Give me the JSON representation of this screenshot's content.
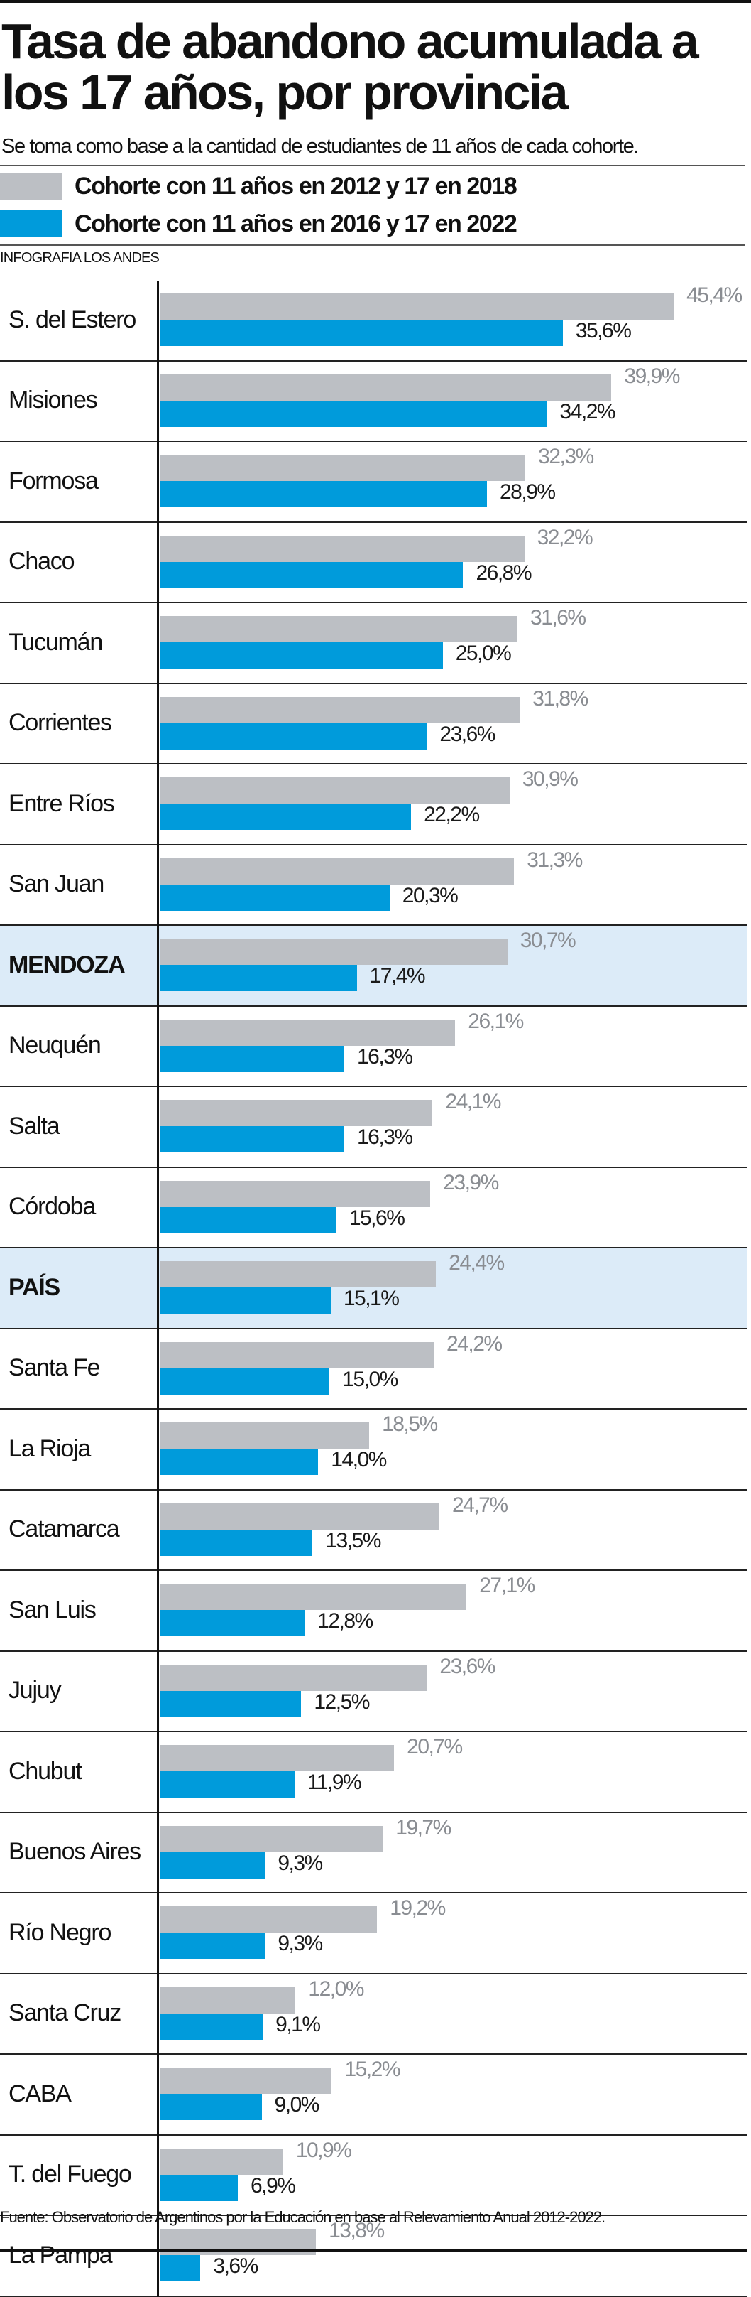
{
  "title": "Tasa de abandono acumulada a los 17 años, por provincia",
  "subtitle": "Se toma como base a la cantidad de estudiantes de 11 años de cada cohorte.",
  "credit": "INFOGRAFIA LOS ANDES",
  "source": "Fuente: Observatorio de Argentinos por la Educación en base al Relevamiento Anual 2012-2022.",
  "colors": {
    "old": "#bcbfc4",
    "new": "#009bdb",
    "highlight": "#dcebf8"
  },
  "chart_data": {
    "type": "bar",
    "orientation": "horizontal",
    "legend_placement": "top",
    "grid": false,
    "xlim": [
      0,
      52
    ],
    "highlighted": [
      "MENDOZA",
      "PAÍS"
    ],
    "categories": [
      "S. del Estero",
      "Misiones",
      "Formosa",
      "Chaco",
      "Tucumán",
      "Corrientes",
      "Entre Ríos",
      "San Juan",
      "MENDOZA",
      "Neuquén",
      "Salta",
      "Córdoba",
      "PAÍS",
      "Santa Fe",
      "La Rioja",
      "Catamarca",
      "San Luis",
      "Jujuy",
      "Chubut",
      "Buenos Aires",
      "Río Negro",
      "Santa Cruz",
      "CABA",
      "T. del Fuego",
      "La Pampa"
    ],
    "series": [
      {
        "name": "Cohorte con 11 años en 2012 y 17 en 2018",
        "values": [
          45.4,
          39.9,
          32.3,
          32.2,
          31.6,
          31.8,
          30.9,
          31.3,
          30.7,
          26.1,
          24.1,
          23.9,
          24.4,
          24.2,
          18.5,
          24.7,
          27.1,
          23.6,
          20.7,
          19.7,
          19.2,
          12.0,
          15.2,
          10.9,
          13.8
        ],
        "labels": [
          "45,4%",
          "39,9%",
          "32,3%",
          "32,2%",
          "31,6%",
          "31,8%",
          "30,9%",
          "31,3%",
          "30,7%",
          "26,1%",
          "24,1%",
          "23,9%",
          "24,4%",
          "24,2%",
          "18,5%",
          "24,7%",
          "27,1%",
          "23,6%",
          "20,7%",
          "19,7%",
          "19,2%",
          "12,0%",
          "15,2%",
          "10,9%",
          "13,8%"
        ]
      },
      {
        "name": "Cohorte con 11 años en 2016 y 17 en 2022",
        "values": [
          35.6,
          34.2,
          28.9,
          26.8,
          25.0,
          23.6,
          22.2,
          20.3,
          17.4,
          16.3,
          16.3,
          15.6,
          15.1,
          15.0,
          14.0,
          13.5,
          12.8,
          12.5,
          11.9,
          9.3,
          9.3,
          9.1,
          9.0,
          6.9,
          3.6
        ],
        "labels": [
          "35,6%",
          "34,2%",
          "28,9%",
          "26,8%",
          "25,0%",
          "23,6%",
          "22,2%",
          "20,3%",
          "17,4%",
          "16,3%",
          "16,3%",
          "15,6%",
          "15,1%",
          "15,0%",
          "14,0%",
          "13,5%",
          "12,8%",
          "12,5%",
          "11,9%",
          "9,3%",
          "9,3%",
          "9,1%",
          "9,0%",
          "6,9%",
          "3,6%"
        ]
      }
    ]
  }
}
